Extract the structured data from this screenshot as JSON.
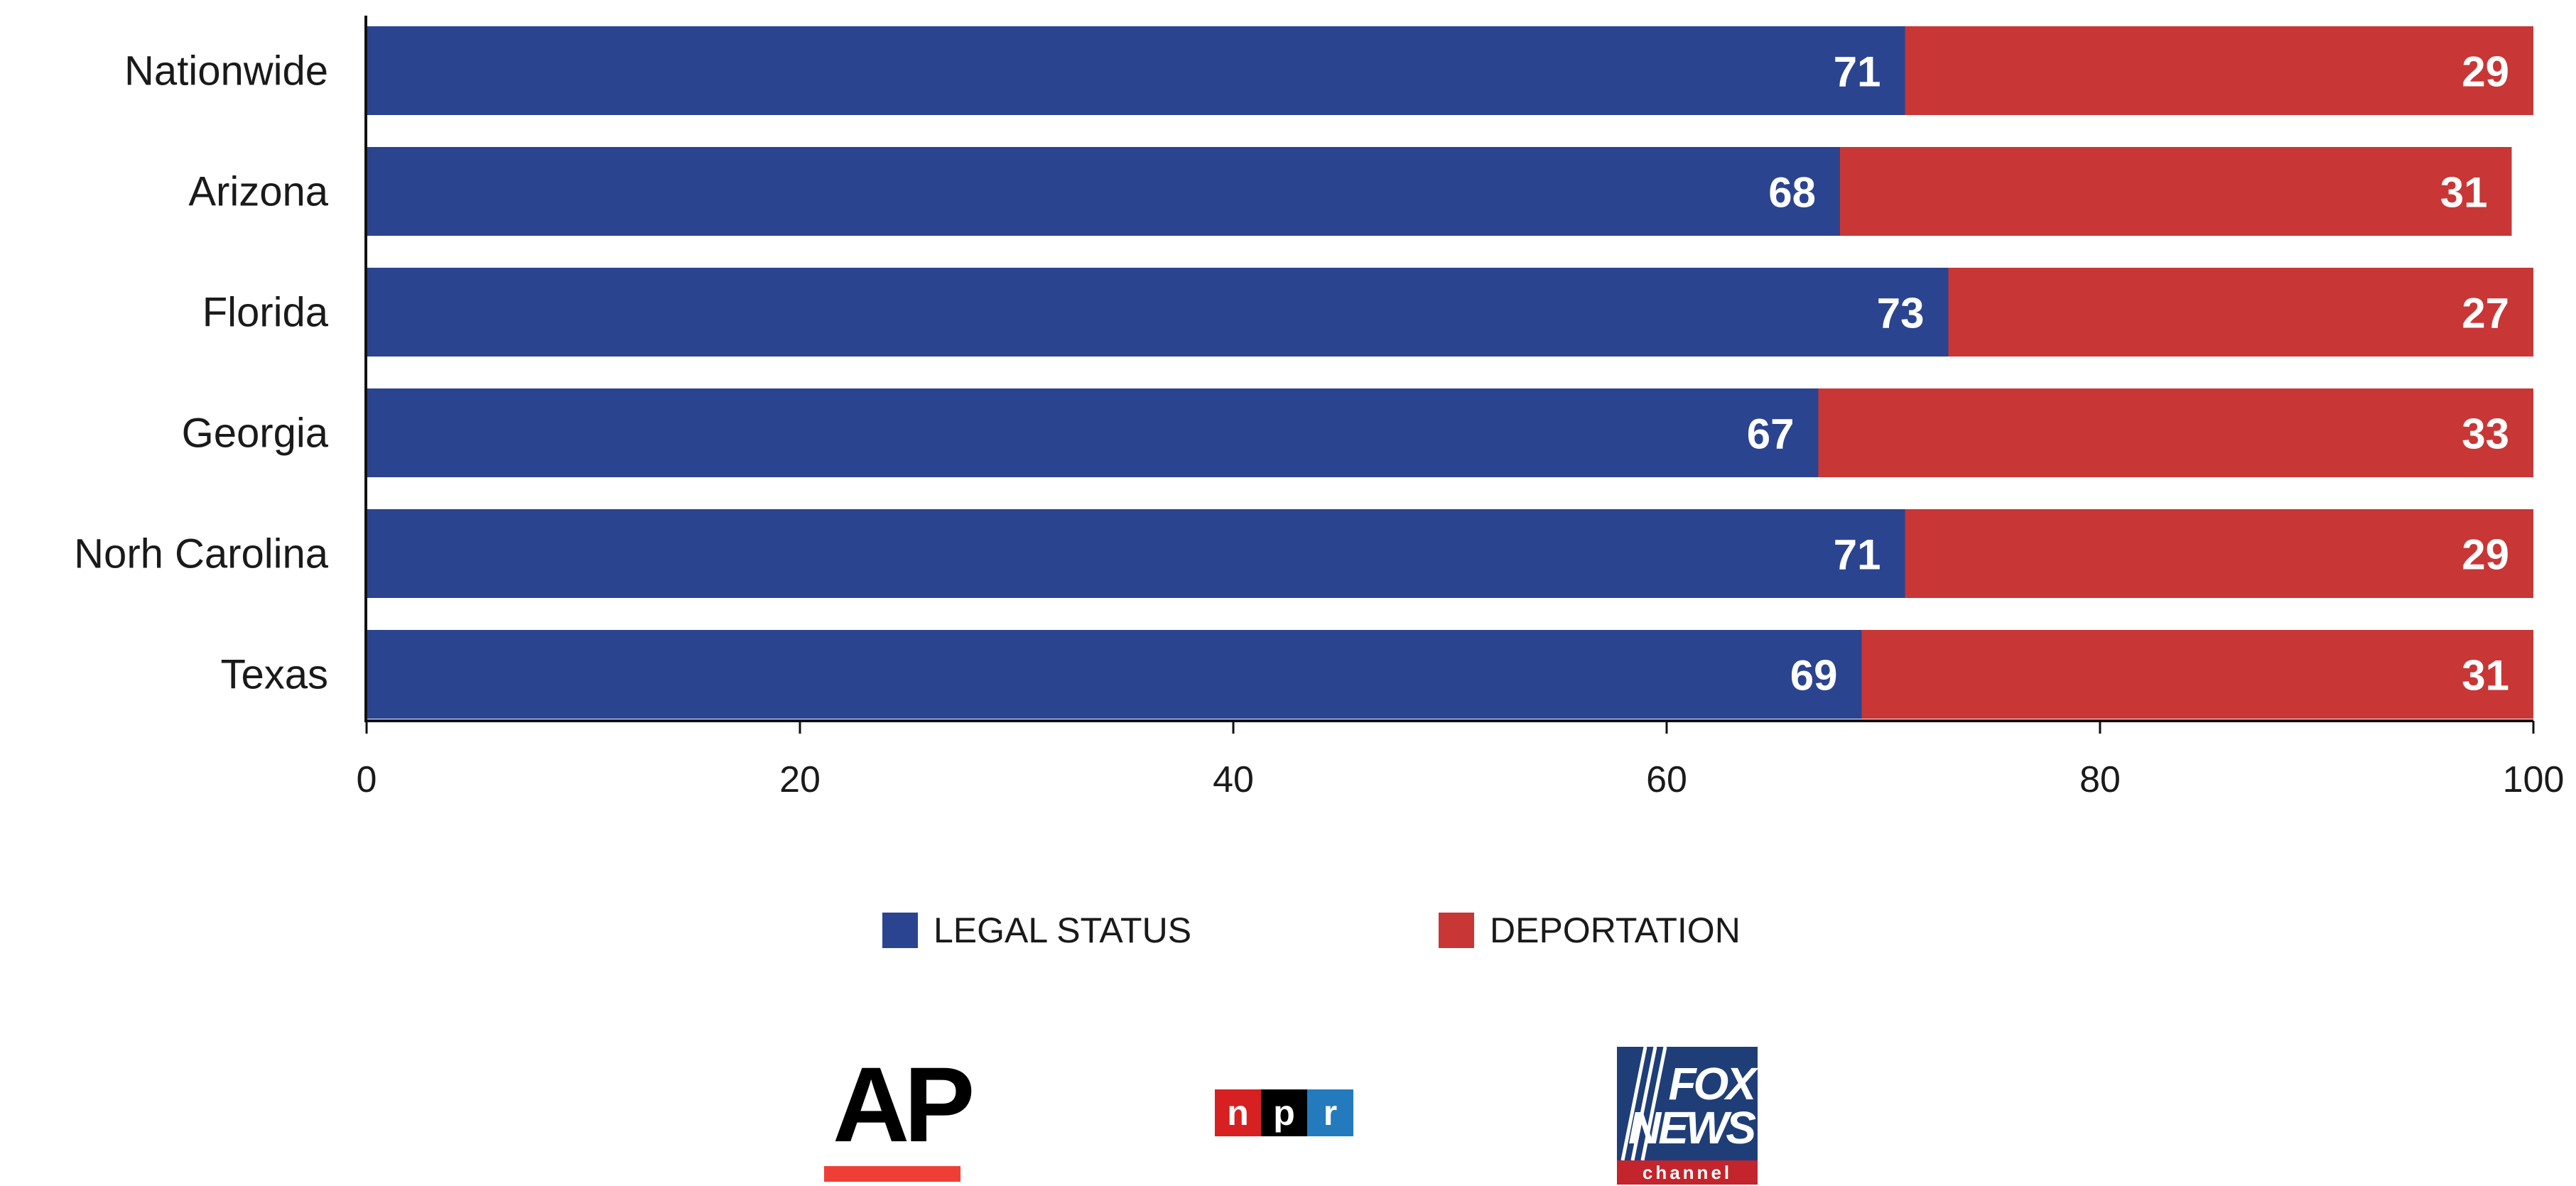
{
  "chart_data": {
    "type": "bar",
    "orientation": "horizontal",
    "stacked": true,
    "categories": [
      "Nationwide",
      "Arizona",
      "Florida",
      "Georgia",
      "Norh Carolina",
      "Texas"
    ],
    "series": [
      {
        "name": "LEGAL STATUS",
        "color": "#2b4490",
        "values": [
          71,
          68,
          73,
          67,
          71,
          69
        ]
      },
      {
        "name": "DEPORTATION",
        "color": "#c83636",
        "values": [
          29,
          31,
          27,
          33,
          29,
          31
        ]
      }
    ],
    "xlim": [
      0,
      100
    ],
    "xticks": [
      0,
      20,
      40,
      60,
      80,
      100
    ],
    "grid": false,
    "legend_position": "bottom"
  },
  "legend": {
    "items": [
      {
        "label": "LEGAL STATUS",
        "color": "#2b4490"
      },
      {
        "label": "DEPORTATION",
        "color": "#c83636"
      }
    ]
  },
  "logos": {
    "ap": {
      "text": "AP",
      "bar_color": "#ef3e36",
      "icon": "ap-logo"
    },
    "npr": {
      "letters": [
        "n",
        "p",
        "r"
      ],
      "colors": [
        "#d62021",
        "#000000",
        "#237bbd"
      ],
      "icon": "npr-logo"
    },
    "fox": {
      "line1": "FOX",
      "line2": "NEWS",
      "line3": "channel",
      "icon": "fox-news-logo"
    }
  }
}
